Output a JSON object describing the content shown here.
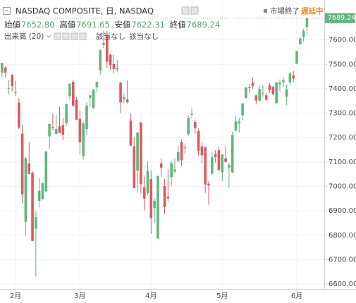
{
  "chart_data": {
    "type": "candlestick",
    "title": "NASDAQ COMPOSITE, 日, NASDAQ",
    "status": "市場終了",
    "delay": "遅延中",
    "ohlc_legend": [
      {
        "label": "始値",
        "value": "7652.80"
      },
      {
        "label": "高値",
        "value": "7691.65"
      },
      {
        "label": "安値",
        "value": "7622.31"
      },
      {
        "label": "終値",
        "value": "7689.24"
      }
    ],
    "indicator": {
      "name": "出来高 (20)",
      "values": [
        "該当なし",
        "該当なし"
      ]
    },
    "last_price_label": "7689.24",
    "up_color": "#5fb67c",
    "down_color": "#dc5a60",
    "grid": true,
    "categories": [
      null,
      null,
      null,
      null,
      "2月",
      null,
      null,
      null,
      null,
      null,
      null,
      null,
      null,
      null,
      null,
      null,
      null,
      null,
      null,
      null,
      null,
      null,
      null,
      "3月",
      null,
      null,
      null,
      null,
      null,
      null,
      null,
      null,
      null,
      null,
      null,
      null,
      null,
      null,
      null,
      null,
      null,
      null,
      null,
      null,
      "4月",
      null,
      null,
      null,
      null,
      null,
      null,
      null,
      null,
      null,
      null,
      null,
      null,
      null,
      null,
      null,
      null,
      null,
      null,
      null,
      null,
      "5月",
      null,
      null,
      null,
      null,
      null,
      null,
      null,
      null,
      null,
      null,
      null,
      null,
      null,
      null,
      null,
      null,
      null,
      null,
      null,
      null,
      null,
      "6月",
      null,
      null,
      null
    ],
    "open": [
      7465,
      7486,
      7400,
      7457,
      7386,
      7343,
      7216,
      6855,
      7094,
      7056,
      6827,
      6941,
      6949,
      6980,
      7205,
      7243,
      7215,
      7246,
      7251,
      7258,
      7370,
      7428,
      7354,
      7277,
      7125,
      7235,
      7363,
      7322,
      7406,
      7475,
      7580,
      7617,
      7539,
      7501,
      7483,
      7424,
      7356,
      7356,
      7270,
      7164,
      7065,
      7262,
      6996,
      6973,
      7030,
      6912,
      6787,
      7094,
      7001,
      6958,
      7038,
      7060,
      7104,
      7181,
      7159,
      7214,
      7293,
      7264,
      7227,
      7164,
      7161,
      7011,
      7053,
      7133,
      7148,
      7058,
      7115,
      7077,
      7057,
      7229,
      7258,
      7291,
      7362,
      7406,
      7424,
      7373,
      7351,
      7381,
      7373,
      7414,
      7408,
      7342,
      7418,
      7426,
      7367,
      7425,
      7454,
      7502,
      7583,
      7612,
      7652.8
    ],
    "high": [
      7506,
      7492,
      7437,
      7460,
      7433,
      7361,
      7253,
      7121,
      7181,
      7062,
      6898,
      7034,
      7016,
      7144,
      7257,
      7300,
      7294,
      7326,
      7279,
      7337,
      7421,
      7437,
      7366,
      7310,
      7264,
      7345,
      7374,
      7399,
      7428,
      7560,
      7637,
      7637,
      7543,
      7538,
      7517,
      7429,
      7380,
      7434,
      7299,
      7201,
      7221,
      7263,
      7041,
      7102,
      7066,
      6951,
      7045,
      7113,
      7030,
      7072,
      7104,
      7113,
      7165,
      7192,
      7176,
      7292,
      7320,
      7272,
      7237,
      7182,
      7162,
      7021,
      7141,
      7149,
      7164,
      7130,
      7165,
      7098,
      7223,
      7290,
      7282,
      7340,
      7405,
      7420,
      7446,
      7375,
      7413,
      7415,
      7384,
      7423,
      7412,
      7427,
      7438,
      7448,
      7417,
      7470,
      7473,
      7556,
      7612,
      7646,
      7691.65
    ],
    "low": [
      7445,
      7447,
      7377,
      7388,
      7369,
      7235,
      6930,
      6800,
      7049,
      6777,
      6630,
      6914,
      6945,
      6975,
      7153,
      7230,
      7213,
      7218,
      7188,
      7246,
      7355,
      7329,
      7272,
      7130,
      7109,
      7212,
      7326,
      7317,
      7385,
      7457,
      7567,
      7486,
      7478,
      7463,
      7469,
      7300,
      7340,
      7340,
      7166,
      6992,
      6975,
      6970,
      6901,
      6963,
      6805,
      6851,
      6784,
      7040,
      6887,
      6940,
      7001,
      7056,
      7098,
      7083,
      7133,
      7207,
      7281,
      7216,
      7127,
      7094,
      6973,
      6925,
      7046,
      7098,
      7066,
      7022,
      7097,
      6993,
      7054,
      7225,
      7220,
      7271,
      7360,
      7381,
      7400,
      7337,
      7350,
      7365,
      7349,
      7382,
      7373,
      7336,
      7389,
      7408,
      7333,
      7415,
      7427,
      7502,
      7580,
      7593,
      7622.31
    ],
    "close": [
      7506,
      7466,
      7402,
      7411,
      7385,
      7240,
      6968,
      7116,
      7051,
      6777,
      6874,
      6982,
      7013,
      7143,
      7256,
      7240,
      7235,
      7219,
      7211,
      7337,
      7421,
      7330,
      7273,
      7181,
      7258,
      7331,
      7373,
      7396,
      7428,
      7560,
      7588,
      7511,
      7496,
      7481,
      7482,
      7344,
      7365,
      7345,
      7167,
      6993,
      7221,
      7009,
      6950,
      7063,
      6870,
      6941,
      7042,
      7077,
      6915,
      6951,
      7095,
      7070,
      7141,
      7107,
      7157,
      7281,
      7296,
      7238,
      7146,
      7128,
      7008,
      7004,
      7119,
      7120,
      7066,
      7131,
      7101,
      7088,
      7210,
      7266,
      7266,
      7340,
      7405,
      7403,
      7412,
      7352,
      7399,
      7382,
      7355,
      7394,
      7378,
      7426,
      7425,
      7434,
      7397,
      7462,
      7442,
      7554,
      7606,
      7637,
      7689.24
    ],
    "ylim": [
      6580,
      7700
    ],
    "yticks": [
      {
        "value": 6600,
        "label": "6600.00"
      },
      {
        "value": 6700,
        "label": "6700.00"
      },
      {
        "value": 6800,
        "label": "6800.00"
      },
      {
        "value": 6900,
        "label": "6900.00"
      },
      {
        "value": 7000,
        "label": "7000.00"
      },
      {
        "value": 7100,
        "label": "7100.00"
      },
      {
        "value": 7200,
        "label": "7200.00"
      },
      {
        "value": 7300,
        "label": "7300.00"
      },
      {
        "value": 7400,
        "label": "7400.00"
      },
      {
        "value": 7500,
        "label": "7500.00"
      },
      {
        "value": 7600,
        "label": "7600.00"
      }
    ]
  }
}
